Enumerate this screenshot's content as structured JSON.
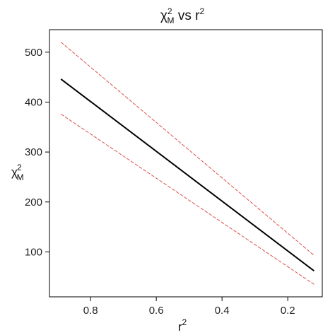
{
  "chart_data": {
    "type": "line",
    "title": {
      "symbol": "χ",
      "sup": "2",
      "sub": "M",
      "rest": " vs r",
      "rest_sup": "2"
    },
    "xlabel": {
      "base": "r",
      "sup": "2"
    },
    "ylabel": {
      "symbol": "χ",
      "sup": "2",
      "sub": "M"
    },
    "xlim": [
      0.925,
      0.095
    ],
    "ylim": [
      10,
      545
    ],
    "xticks": [
      0.8,
      0.6,
      0.4,
      0.2
    ],
    "xtick_labels": [
      "0.8",
      "0.6",
      "0.4",
      "0.2"
    ],
    "yticks": [
      100,
      200,
      300,
      400,
      500
    ],
    "ytick_labels": [
      "100",
      "200",
      "300",
      "400",
      "500"
    ],
    "grid": false,
    "legend": "none",
    "series": [
      {
        "x": [
          0.89,
          0.12
        ],
        "y": [
          520,
          93
        ],
        "color": "#d9534f",
        "style": "dashed"
      },
      {
        "x": [
          0.89,
          0.12
        ],
        "y": [
          446,
          62
        ],
        "color": "#000000",
        "style": "solid"
      },
      {
        "x": [
          0.89,
          0.12
        ],
        "y": [
          376,
          35
        ],
        "color": "#d9534f",
        "style": "dashed"
      }
    ]
  }
}
